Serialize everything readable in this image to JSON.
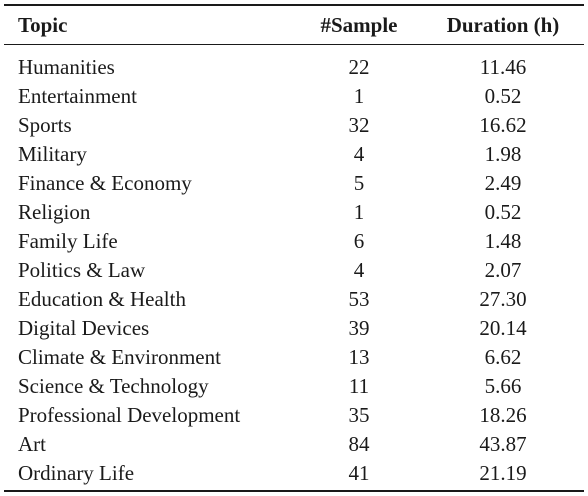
{
  "table": {
    "headers": {
      "topic": "Topic",
      "sample": "#Sample",
      "duration": "Duration (h)"
    },
    "rows": [
      {
        "topic": "Humanities",
        "sample": "22",
        "duration": "11.46"
      },
      {
        "topic": "Entertainment",
        "sample": "1",
        "duration": "0.52"
      },
      {
        "topic": "Sports",
        "sample": "32",
        "duration": "16.62"
      },
      {
        "topic": "Military",
        "sample": "4",
        "duration": "1.98"
      },
      {
        "topic": "Finance & Economy",
        "sample": "5",
        "duration": "2.49"
      },
      {
        "topic": "Religion",
        "sample": "1",
        "duration": "0.52"
      },
      {
        "topic": "Family Life",
        "sample": "6",
        "duration": "1.48"
      },
      {
        "topic": "Politics & Law",
        "sample": "4",
        "duration": "2.07"
      },
      {
        "topic": "Education & Health",
        "sample": "53",
        "duration": "27.30"
      },
      {
        "topic": "Digital Devices",
        "sample": "39",
        "duration": "20.14"
      },
      {
        "topic": "Climate & Environment",
        "sample": "13",
        "duration": "6.62"
      },
      {
        "topic": "Science & Technology",
        "sample": "11",
        "duration": "5.66"
      },
      {
        "topic": "Professional Development",
        "sample": "35",
        "duration": "18.26"
      },
      {
        "topic": "Art",
        "sample": "84",
        "duration": "43.87"
      },
      {
        "topic": "Ordinary Life",
        "sample": "41",
        "duration": "21.19"
      }
    ]
  }
}
